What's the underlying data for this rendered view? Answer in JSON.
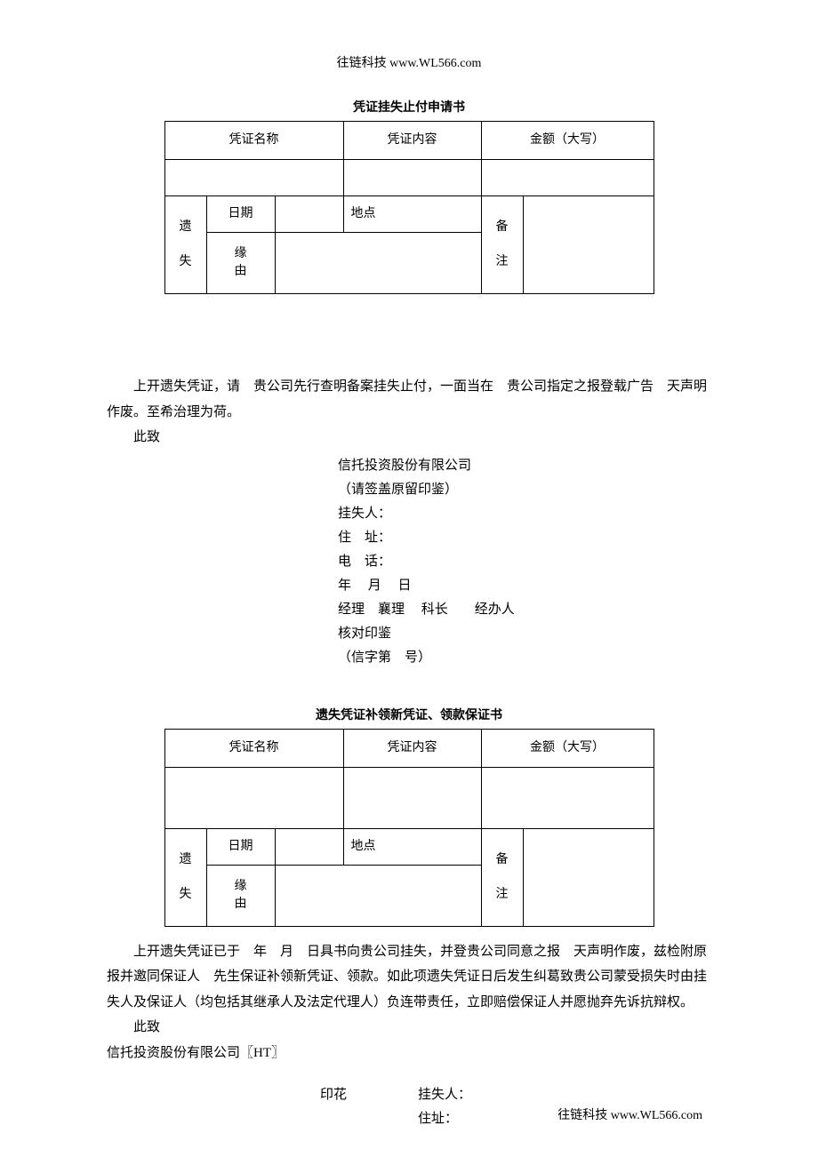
{
  "header": "往链科技 www.WL566.com",
  "footer": "往链科技 www.WL566.com",
  "table1": {
    "title": "凭证挂失止付申请书",
    "h1": "凭证名称",
    "h2": "凭证内容",
    "h3": "金额（大写）",
    "lost": "遗失",
    "date": "日期",
    "place": "地点",
    "note": "备注",
    "reason": "缘由"
  },
  "body1": {
    "p1": "上开遗失凭证，请　贵公司先行查明备案挂失止付，一面当在　贵公司指定之报登载广告　天声明作废。至希治理为荷。",
    "p2": "此致",
    "sig_company": "信托投资股份有限公司",
    "sig_seal": "（请签盖原留印鉴）",
    "sig_person": "挂失人：",
    "sig_addr": "住　址：",
    "sig_tel": "电　话：",
    "sig_date": "年　 月　 日",
    "sig_roles": "经理　襄理　 科长　　经办人",
    "sig_check": "核对印鉴",
    "sig_no": "（信字第　号）"
  },
  "table2": {
    "title": "遗失凭证补领新凭证、领款保证书",
    "h1": "凭证名称",
    "h2": "凭证内容",
    "h3": "金额（大写）",
    "lost": "遗失",
    "date": "日期",
    "place": "地点",
    "note": "备注",
    "reason": "缘由"
  },
  "body2": {
    "p1": "上开遗失凭证已于　年　月　日具书向贵公司挂失，并登贵公司同意之报　天声明作废，兹检附原报并邀同保证人　先生保证补领新凭证、领款。如此项遗失凭证日后发生纠葛致贵公司蒙受损失时由挂失人及保证人（均包括其继承人及法定代理人）负连带责任，立即赔偿保证人并愿抛弃先诉抗辩权。",
    "p2": "此致",
    "p3": "信托投资股份有限公司〖HT〗",
    "stamp": "印花",
    "sig_person": "挂失人：",
    "sig_addr": "住址："
  },
  "layout": {
    "col_w1": 30,
    "col_w2": 60,
    "col_w3": 60,
    "col_w4": 138,
    "col_w5": 30,
    "col_w6": 130,
    "row_h_header": 30,
    "row_h_blank": 28,
    "row_h_date": 28,
    "row_h_reason": 56,
    "t2_row_h_blank": 56
  }
}
